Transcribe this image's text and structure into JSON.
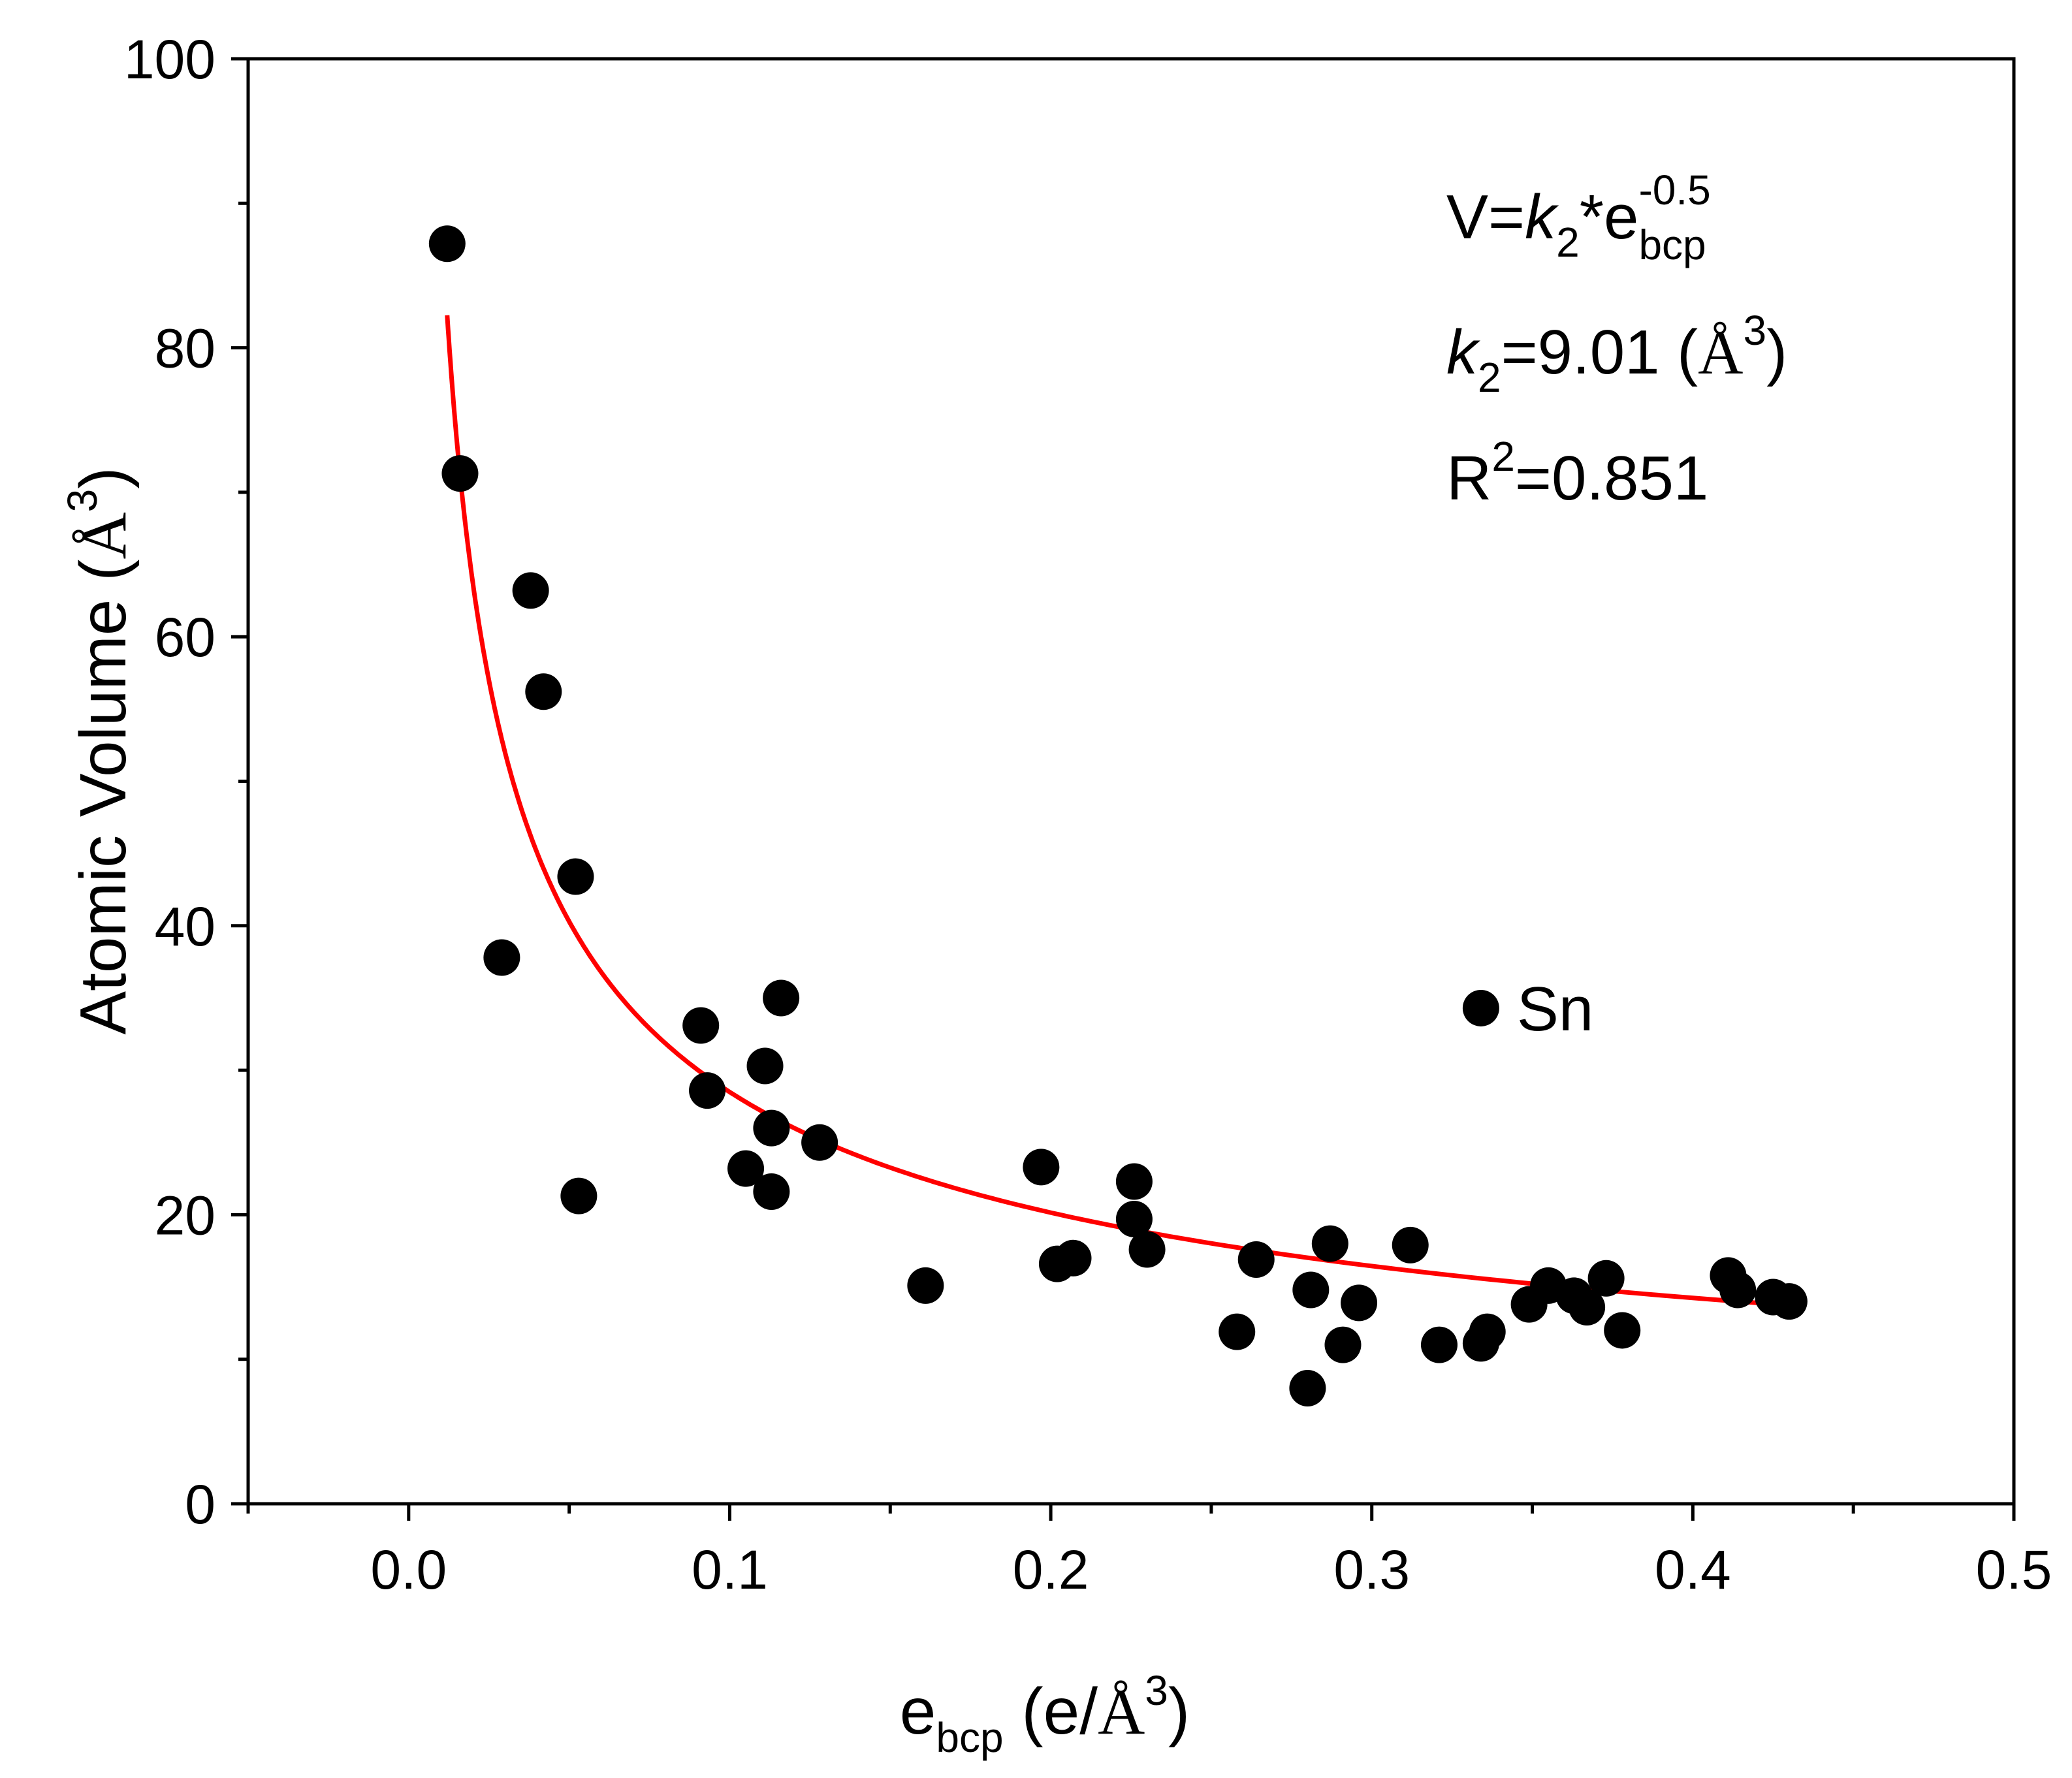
{
  "chart_data": {
    "type": "scatter",
    "title": "",
    "xlabel": {
      "base": "e",
      "sub": "bcp",
      "units_open": " (e/",
      "angstrom": "Å",
      "sup": "3",
      "units_close": ")"
    },
    "ylabel": {
      "text": "Atomic Volume (",
      "angstrom": "Å",
      "sup": "3",
      "close": ")"
    },
    "xlim": [
      -0.05,
      0.5
    ],
    "ylim": [
      0,
      100
    ],
    "x_ticks": [
      {
        "value": 0.0,
        "label": "0.0"
      },
      {
        "value": 0.1,
        "label": "0.1"
      },
      {
        "value": 0.2,
        "label": "0.2"
      },
      {
        "value": 0.3,
        "label": "0.3"
      },
      {
        "value": 0.4,
        "label": "0.4"
      },
      {
        "value": 0.5,
        "label": "0.5"
      }
    ],
    "x_minor_ticks": [
      -0.05,
      0.05,
      0.15,
      0.25,
      0.35,
      0.45
    ],
    "y_ticks": [
      {
        "value": 0,
        "label": "0"
      },
      {
        "value": 20,
        "label": "20"
      },
      {
        "value": 40,
        "label": "40"
      },
      {
        "value": 60,
        "label": "60"
      },
      {
        "value": 80,
        "label": "80"
      },
      {
        "value": 100,
        "label": "100"
      }
    ],
    "y_minor_ticks": [
      10,
      30,
      50,
      70,
      90
    ],
    "grid": false,
    "series": [
      {
        "name": "data",
        "color": "#000000",
        "points": [
          [
            0.012,
            87.2
          ],
          [
            0.016,
            71.3
          ],
          [
            0.038,
            63.2
          ],
          [
            0.042,
            56.2
          ],
          [
            0.052,
            43.4
          ],
          [
            0.029,
            37.8
          ],
          [
            0.053,
            21.3
          ],
          [
            0.091,
            33.1
          ],
          [
            0.093,
            28.6
          ],
          [
            0.111,
            30.3
          ],
          [
            0.113,
            26.0
          ],
          [
            0.116,
            35.0
          ],
          [
            0.105,
            23.2
          ],
          [
            0.113,
            21.6
          ],
          [
            0.128,
            25.0
          ],
          [
            0.161,
            15.1
          ],
          [
            0.197,
            23.3
          ],
          [
            0.202,
            16.6
          ],
          [
            0.207,
            17.0
          ],
          [
            0.226,
            22.3
          ],
          [
            0.226,
            19.7
          ],
          [
            0.23,
            17.6
          ],
          [
            0.258,
            11.9
          ],
          [
            0.264,
            16.9
          ],
          [
            0.28,
            8.0
          ],
          [
            0.281,
            14.8
          ],
          [
            0.287,
            18.0
          ],
          [
            0.291,
            11.0
          ],
          [
            0.296,
            13.9
          ],
          [
            0.312,
            17.9
          ],
          [
            0.321,
            11.0
          ],
          [
            0.334,
            11.1
          ],
          [
            0.336,
            11.9
          ],
          [
            0.349,
            13.8
          ],
          [
            0.355,
            15.1
          ],
          [
            0.363,
            14.4
          ],
          [
            0.367,
            13.6
          ],
          [
            0.373,
            15.6
          ],
          [
            0.378,
            12.0
          ],
          [
            0.411,
            15.8
          ],
          [
            0.414,
            14.8
          ],
          [
            0.425,
            14.3
          ],
          [
            0.43,
            14.0
          ]
        ]
      },
      {
        "name": "Sn",
        "color": "#000000",
        "points": [
          [
            0.334,
            34.3
          ]
        ]
      }
    ],
    "fit": {
      "name": "fit",
      "color": "#ff0000",
      "k2": 9.01,
      "exponent": -0.5,
      "x_range": [
        0.012,
        0.43
      ]
    },
    "annotations": {
      "point_label": "Sn",
      "equation": {
        "lhs": "V=",
        "k": "k",
        "k_sub": "2",
        "mid": "*e",
        "sup": "-0.5",
        "sub": "bcp"
      },
      "k_value": {
        "k": "k",
        "k_sub": "2",
        "text": "=9.01 (",
        "angstrom": "Å",
        "sup": "3",
        "close": ")"
      },
      "r_squared": {
        "r": "R",
        "sup": "2",
        "text": "=0.851"
      }
    }
  }
}
